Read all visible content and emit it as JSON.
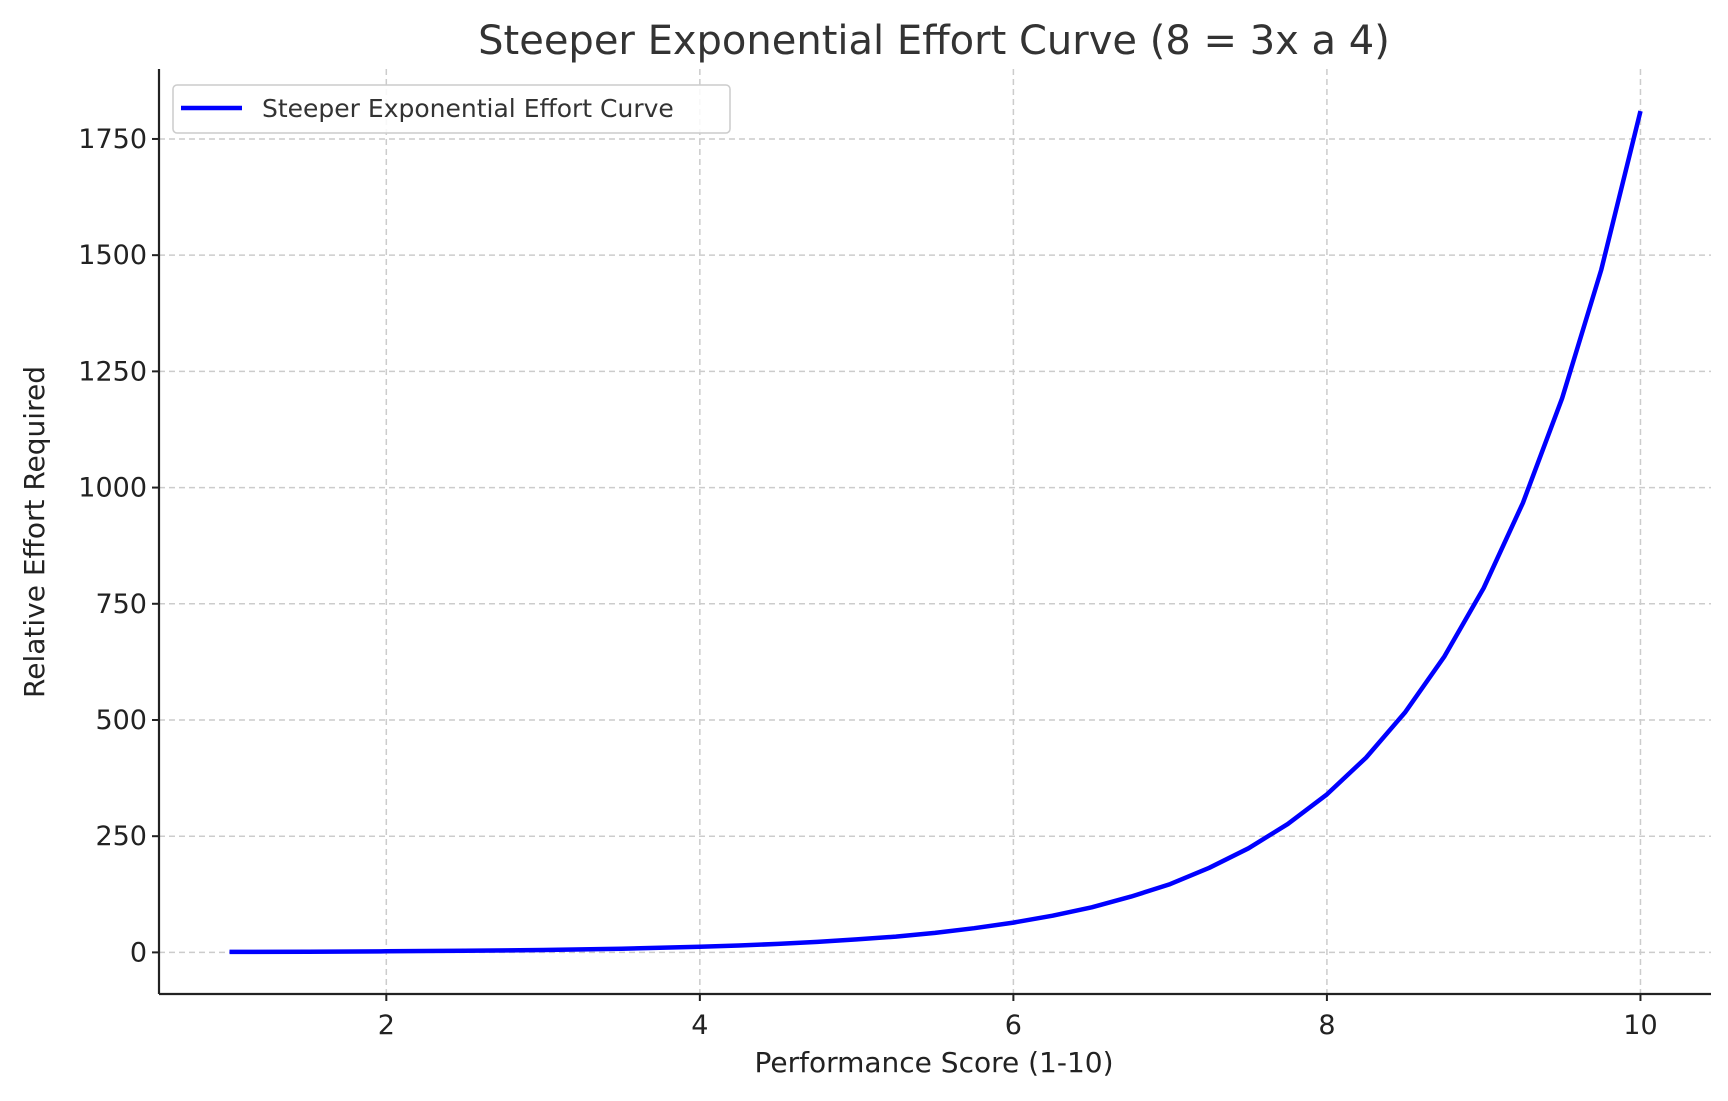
{
  "chart_data": {
    "type": "line",
    "title": "Steeper Exponential Effort Curve (8 = 3x a 4)",
    "xlabel": "Performance Score (1-10)",
    "ylabel": "Relative Effort Required",
    "xlim": [
      0.55,
      10.45
    ],
    "ylim": [
      -89.5,
      1900.5
    ],
    "xticks": [
      2,
      4,
      6,
      8,
      10
    ],
    "xtick_labels": [
      "2",
      "4",
      "6",
      "8",
      "10"
    ],
    "yticks": [
      0,
      250,
      500,
      750,
      1000,
      1250,
      1500,
      1750
    ],
    "ytick_labels": [
      "0",
      "250",
      "500",
      "750",
      "1000",
      "1250",
      "1500",
      "1750"
    ],
    "grid": true,
    "legend_position": "top-left",
    "series": [
      {
        "name": "Steeper Exponential Effort Curve",
        "color": "#0000ff",
        "x": [
          1,
          1.5,
          2,
          2.5,
          3,
          3.5,
          4,
          4.25,
          4.5,
          4.75,
          5,
          5.25,
          5.5,
          5.75,
          6,
          6.25,
          6.5,
          6.75,
          7,
          7.25,
          7.5,
          7.75,
          8,
          8.25,
          8.5,
          8.75,
          9,
          9.25,
          9.5,
          9.75,
          10
        ],
        "y": [
          1.0,
          1.5,
          2.3,
          3.4,
          5.2,
          7.9,
          12.0,
          14.8,
          18.3,
          22.5,
          28,
          34,
          42,
          52,
          64,
          79,
          97,
          120,
          147,
          182,
          224,
          276,
          340,
          419,
          517,
          637,
          784,
          967,
          1192,
          1469,
          1810
        ]
      }
    ]
  }
}
